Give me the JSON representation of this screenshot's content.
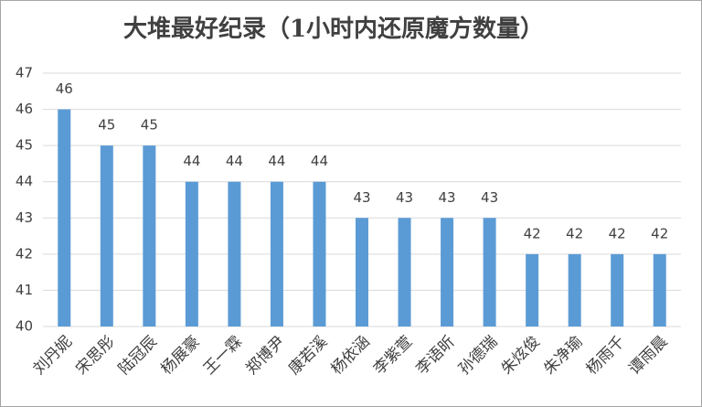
{
  "chart_data": {
    "type": "bar",
    "title": "大堆最好纪录（1小时内还原魔方数量）",
    "categories": [
      "刘丹妮",
      "宋思彤",
      "陆冠辰",
      "杨展豪",
      "王一霖",
      "郑博尹",
      "康若溪",
      "杨依涵",
      "李紫萱",
      "李语昕",
      "孙德瑞",
      "朱炫俊",
      "朱净瑜",
      "杨雨千",
      "谭雨晨"
    ],
    "values": [
      46,
      45,
      45,
      44,
      44,
      44,
      44,
      43,
      43,
      43,
      43,
      42,
      42,
      42,
      42
    ],
    "color": "#5b9bd5",
    "ylim": [
      40,
      47
    ],
    "yticks": [
      40,
      41,
      42,
      43,
      44,
      45,
      46,
      47
    ],
    "grid": true
  }
}
